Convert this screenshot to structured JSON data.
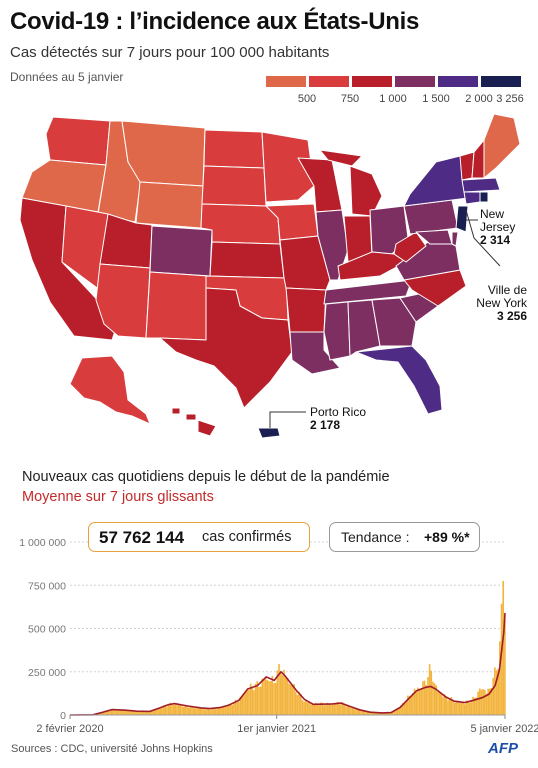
{
  "header": {
    "title": "Covid-19 : l’incidence aux États-Unis",
    "subtitle": "Cas détectés sur 7 jours pour 100 000 habitants",
    "as_of": "Données au 5 janvier"
  },
  "legend": {
    "bins": [
      {
        "label": "",
        "color": "#e0684a"
      },
      {
        "label": "500",
        "color": "#d83c3c"
      },
      {
        "label": "750",
        "color": "#b81f2a"
      },
      {
        "label": "1 000",
        "color": "#7d2f62"
      },
      {
        "label": "1 500",
        "color": "#4e2c85"
      },
      {
        "label": "2 000",
        "color": "#1a1f52"
      },
      {
        "label": "3 256",
        "color": ""
      }
    ]
  },
  "map": {
    "colors": {
      "c0": "#e0684a",
      "c1": "#d83c3c",
      "c2": "#b81f2a",
      "c3": "#7d2f62",
      "c4": "#4e2c85",
      "c5": "#1a1f52"
    },
    "callouts": {
      "new_jersey": {
        "name_line1": "New",
        "name_line2": "Jersey",
        "value": "2 314"
      },
      "new_york": {
        "name_line1": "Ville de",
        "name_line2": "New York",
        "value": "3 256"
      },
      "puerto_rico": {
        "name": "Porto Rico",
        "value": "2 178"
      }
    }
  },
  "timeseries": {
    "title": "Nouveaux cas quotidiens depuis le début de la pandémie",
    "subtitle": "Moyenne sur 7 jours glissants",
    "confirmed_value": "57 762 144",
    "confirmed_label": "cas confirmés",
    "trend_label": "Tendance :",
    "trend_value": "+89 %*"
  },
  "chart_data": {
    "type": "bar",
    "title": "Nouveaux cas quotidiens depuis le début de la pandémie",
    "y_ticks": [
      "1 000 000",
      "750 000",
      "500 000",
      "250 000",
      "0"
    ],
    "y_tick_values": [
      1000000,
      750000,
      500000,
      250000,
      0
    ],
    "ylim": [
      0,
      1000000
    ],
    "x_ticks": [
      {
        "label": "2 février 2020",
        "date": "2020-02-02"
      },
      {
        "label": "1er janvier 2021",
        "date": "2021-01-01"
      },
      {
        "label": "5 janvier 2022",
        "date": "2022-01-05"
      }
    ],
    "series": [
      {
        "name": "Nouveaux cas quotidiens",
        "color": "#f3b43d",
        "points": [
          [
            "2020-02-02",
            0
          ],
          [
            "2020-03-10",
            2000
          ],
          [
            "2020-03-25",
            18000
          ],
          [
            "2020-04-10",
            32000
          ],
          [
            "2020-05-01",
            28000
          ],
          [
            "2020-05-20",
            22000
          ],
          [
            "2020-06-10",
            22000
          ],
          [
            "2020-06-25",
            42000
          ],
          [
            "2020-07-10",
            62000
          ],
          [
            "2020-07-20",
            68000
          ],
          [
            "2020-08-10",
            52000
          ],
          [
            "2020-09-01",
            40000
          ],
          [
            "2020-09-15",
            36000
          ],
          [
            "2020-10-01",
            44000
          ],
          [
            "2020-10-15",
            58000
          ],
          [
            "2020-11-01",
            90000
          ],
          [
            "2020-11-15",
            160000
          ],
          [
            "2020-12-01",
            180000
          ],
          [
            "2020-12-15",
            230000
          ],
          [
            "2020-12-28",
            200000
          ],
          [
            "2021-01-08",
            300000
          ],
          [
            "2021-01-15",
            240000
          ],
          [
            "2021-02-01",
            150000
          ],
          [
            "2021-02-15",
            90000
          ],
          [
            "2021-03-01",
            65000
          ],
          [
            "2021-04-01",
            70000
          ],
          [
            "2021-04-15",
            72000
          ],
          [
            "2021-05-01",
            48000
          ],
          [
            "2021-05-15",
            30000
          ],
          [
            "2021-06-01",
            16000
          ],
          [
            "2021-06-20",
            12000
          ],
          [
            "2021-07-05",
            14000
          ],
          [
            "2021-07-20",
            50000
          ],
          [
            "2021-08-01",
            100000
          ],
          [
            "2021-08-15",
            160000
          ],
          [
            "2021-08-30",
            200000
          ],
          [
            "2021-09-07",
            280000
          ],
          [
            "2021-09-15",
            170000
          ],
          [
            "2021-10-01",
            110000
          ],
          [
            "2021-10-15",
            85000
          ],
          [
            "2021-11-01",
            75000
          ],
          [
            "2021-11-15",
            95000
          ],
          [
            "2021-11-29",
            170000
          ],
          [
            "2021-12-10",
            140000
          ],
          [
            "2021-12-20",
            250000
          ],
          [
            "2021-12-27",
            350000
          ],
          [
            "2022-01-03",
            920000
          ],
          [
            "2022-01-05",
            620000
          ]
        ]
      },
      {
        "name": "Moyenne sur 7 jours glissants",
        "color": "#a01c2a",
        "points": [
          [
            "2020-02-02",
            0
          ],
          [
            "2020-03-10",
            1000
          ],
          [
            "2020-03-25",
            15000
          ],
          [
            "2020-04-10",
            31000
          ],
          [
            "2020-05-01",
            28000
          ],
          [
            "2020-05-20",
            22000
          ],
          [
            "2020-06-10",
            21000
          ],
          [
            "2020-06-25",
            40000
          ],
          [
            "2020-07-10",
            60000
          ],
          [
            "2020-07-20",
            66000
          ],
          [
            "2020-08-10",
            52000
          ],
          [
            "2020-09-01",
            41000
          ],
          [
            "2020-09-15",
            37000
          ],
          [
            "2020-10-01",
            43000
          ],
          [
            "2020-10-15",
            56000
          ],
          [
            "2020-11-01",
            85000
          ],
          [
            "2020-11-15",
            150000
          ],
          [
            "2020-12-01",
            170000
          ],
          [
            "2020-12-15",
            220000
          ],
          [
            "2020-12-28",
            200000
          ],
          [
            "2021-01-08",
            250000
          ],
          [
            "2021-01-15",
            225000
          ],
          [
            "2021-02-01",
            145000
          ],
          [
            "2021-02-15",
            90000
          ],
          [
            "2021-03-01",
            62000
          ],
          [
            "2021-04-01",
            64000
          ],
          [
            "2021-04-15",
            69000
          ],
          [
            "2021-05-01",
            48000
          ],
          [
            "2021-05-15",
            30000
          ],
          [
            "2021-06-01",
            16000
          ],
          [
            "2021-06-20",
            12000
          ],
          [
            "2021-07-05",
            14000
          ],
          [
            "2021-07-20",
            45000
          ],
          [
            "2021-08-01",
            90000
          ],
          [
            "2021-08-15",
            140000
          ],
          [
            "2021-08-30",
            160000
          ],
          [
            "2021-09-07",
            165000
          ],
          [
            "2021-09-15",
            150000
          ],
          [
            "2021-10-01",
            105000
          ],
          [
            "2021-10-15",
            80000
          ],
          [
            "2021-11-01",
            72000
          ],
          [
            "2021-11-15",
            85000
          ],
          [
            "2021-11-29",
            100000
          ],
          [
            "2021-12-10",
            120000
          ],
          [
            "2021-12-20",
            170000
          ],
          [
            "2021-12-27",
            260000
          ],
          [
            "2022-01-03",
            480000
          ],
          [
            "2022-01-05",
            590000
          ]
        ]
      }
    ]
  },
  "footer": {
    "sources": "Sources : CDC, université Johns Hopkins",
    "logo": "AFP"
  }
}
